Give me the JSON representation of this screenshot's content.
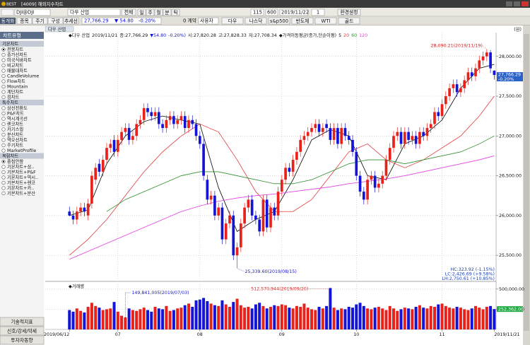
{
  "window": {
    "logo": "BEST",
    "title": "[4009] 해외지수차트"
  },
  "toolbar": {
    "symbol": "DJI@DJI",
    "name": "다우 산업",
    "range": "전체",
    "periods": [
      "일",
      "주",
      "월",
      "분",
      "틱"
    ],
    "count": "115",
    "max": "600",
    "date": "2019/11/22",
    "unit": "1",
    "settings": "환경설정",
    "tabs": [
      "동개화",
      "종목",
      "주기",
      "구성",
      "추세선"
    ],
    "price": "27,766.29",
    "change": "▼  54.80",
    "rate": "-0.20%",
    "contracts": "0 계약",
    "user": "사용자",
    "indices": [
      "다우",
      "나스닥",
      "s&p500",
      "반도체",
      "WTI",
      "골드"
    ]
  },
  "side_panel": {
    "title": "차트유형",
    "groups": [
      {
        "title": "기본차트",
        "selected": 0,
        "items": [
          "전봉차트",
          "종가선차트",
          "미국식바차트",
          "비교차트",
          "매물대차트",
          "CandleVolume",
          "Flow차트",
          "Mountain",
          "계단차트",
          "점차트"
        ]
      },
      {
        "title": "특수차트",
        "items": [
          "삼선전환도",
          "P&F차트",
          "역시계곡선",
          "렌코차트",
          "카기스윙",
          "분산차트",
          "역오선차트",
          "주기차트",
          "MarketProfile"
        ]
      },
      {
        "title": "복합차트",
        "selected": 0,
        "items": [
          "중첩안함",
          "기본차트+삼..",
          "기본차트+P&F",
          "기본차트+역시..",
          "기본차트+렌코",
          "기본차트+카..",
          "기본차트+분산"
        ]
      }
    ],
    "buttons": [
      "기술적지표",
      "신호/강세/약세",
      "투자자동향"
    ]
  },
  "chart_data": [
    {
      "type": "candlestick",
      "tab": "다우 산업",
      "unit_label": "(원)",
      "header": [
        {
          "text": "◆다우 산업",
          "color": "#111111"
        },
        {
          "text": "2019/11/21",
          "color": "#111111"
        },
        {
          "text": "종:27,766.29",
          "color": "#111111"
        },
        {
          "text": "▼54.80",
          "color": "#1414d6"
        },
        {
          "text": "-0.20%)",
          "color": "#1414d6"
        },
        {
          "text": "시:27,820.28",
          "color": "#111111"
        },
        {
          "text": "고:27,828.33",
          "color": "#111111"
        },
        {
          "text": "저:27,708.34",
          "color": "#111111"
        },
        {
          "text": "◆가격이동평균(종가,단순이평)",
          "color": "#111111"
        }
      ],
      "up_color": "#e8221b",
      "down_color": "#1414d6",
      "open": [
        26050,
        26000,
        25950,
        26050,
        26100,
        26000,
        26150,
        26450,
        26650,
        26550,
        26700,
        26850,
        26950,
        26800,
        26950,
        27050,
        27100,
        26950,
        27000,
        27150,
        27200,
        27350,
        27300,
        27250,
        27300,
        27150,
        27100,
        27200,
        27250,
        27150,
        27200,
        27250,
        27100,
        27200,
        27150,
        27000,
        26900,
        26450,
        26200,
        26250,
        26000,
        26100,
        25700,
        25900,
        26000,
        25500,
        25600,
        25900,
        26100,
        26200,
        26000,
        25950,
        25800,
        26200,
        25850,
        26100,
        26000,
        26300,
        26450,
        26600,
        26550,
        26700,
        26800,
        26950,
        27000,
        27050,
        27100,
        27150,
        27050,
        27150,
        27100,
        26950,
        27100,
        26900,
        27100,
        27000,
        26950,
        26800,
        26500,
        26300,
        26200,
        26450,
        26500,
        26350,
        26400,
        26500,
        26700,
        26850,
        27000,
        27050,
        26900,
        27050,
        26950,
        27000,
        26900,
        27050,
        27000,
        27100,
        27150,
        27300,
        27250,
        27400,
        27500,
        27600,
        27650,
        27550,
        27600,
        27700,
        27800,
        27750,
        27850,
        27950,
        28000,
        28050,
        27820.28
      ],
      "high": [
        26110,
        26060,
        26110,
        26160,
        26160,
        26210,
        26560,
        26660,
        26710,
        26760,
        26910,
        26960,
        27010,
        27010,
        27110,
        27160,
        27160,
        27060,
        27210,
        27260,
        27410,
        27410,
        27360,
        27360,
        27360,
        27210,
        27260,
        27310,
        27310,
        27260,
        27310,
        27310,
        27260,
        27260,
        27210,
        27060,
        26960,
        26510,
        26310,
        26310,
        26160,
        26160,
        25960,
        26060,
        26060,
        25660,
        25960,
        26160,
        26260,
        26260,
        26060,
        26010,
        26260,
        26260,
        26160,
        26160,
        26360,
        26510,
        26660,
        26660,
        26760,
        26860,
        27010,
        27060,
        27110,
        27160,
        27210,
        27210,
        27160,
        27210,
        27160,
        27160,
        27160,
        27160,
        27160,
        27060,
        27010,
        26860,
        26560,
        26360,
        26510,
        26560,
        26560,
        26460,
        26560,
        26760,
        26910,
        27060,
        27110,
        27110,
        27110,
        27110,
        27060,
        27060,
        27110,
        27110,
        27160,
        27210,
        27360,
        27360,
        27460,
        27560,
        27660,
        27710,
        27710,
        27660,
        27760,
        27860,
        27860,
        27910,
        28010,
        28060,
        28090.21,
        28080,
        27828.33
      ],
      "low": [
        25990,
        25890,
        25890,
        25990,
        25990,
        25940,
        26090,
        26390,
        26490,
        26490,
        26640,
        26790,
        26740,
        26740,
        26890,
        26990,
        26890,
        26890,
        26940,
        27090,
        27140,
        27240,
        27190,
        27190,
        27090,
        27040,
        27040,
        27140,
        27090,
        27090,
        27140,
        27040,
        27040,
        27090,
        26940,
        26840,
        26440,
        26140,
        26140,
        25940,
        25940,
        25640,
        25640,
        25840,
        25440,
        25339.6,
        25540,
        25840,
        26040,
        25940,
        25890,
        25740,
        25740,
        25790,
        25790,
        25940,
        25940,
        26240,
        26390,
        26490,
        26490,
        26640,
        26740,
        26890,
        26940,
        26990,
        27040,
        26990,
        26990,
        27040,
        26890,
        26890,
        26840,
        26840,
        26940,
        26890,
        26740,
        26440,
        26240,
        26140,
        26140,
        26390,
        26290,
        26290,
        26340,
        26440,
        26640,
        26790,
        26940,
        26840,
        26840,
        26890,
        26890,
        26840,
        26840,
        26940,
        26940,
        27040,
        27090,
        27190,
        27190,
        27340,
        27440,
        27540,
        27490,
        27490,
        27540,
        27640,
        27690,
        27690,
        27790,
        27890,
        27940,
        27790,
        27708.34
      ],
      "close": [
        26000,
        25950,
        26050,
        26100,
        26050,
        26150,
        26500,
        26600,
        26550,
        26700,
        26850,
        26900,
        26800,
        26950,
        27050,
        27100,
        26950,
        27000,
        27150,
        27200,
        27350,
        27300,
        27250,
        27300,
        27150,
        27100,
        27200,
        27250,
        27150,
        27200,
        27250,
        27100,
        27200,
        27150,
        27000,
        26900,
        26500,
        26200,
        26250,
        26000,
        26100,
        25700,
        25900,
        26000,
        25500,
        25600,
        25900,
        26100,
        26200,
        26000,
        25950,
        25800,
        26200,
        25850,
        26100,
        26000,
        26300,
        26450,
        26600,
        26550,
        26700,
        26800,
        26950,
        27000,
        27050,
        27100,
        27150,
        27050,
        27100,
        27100,
        26950,
        27100,
        26900,
        27100,
        27000,
        26950,
        26800,
        26500,
        26300,
        26200,
        26450,
        26500,
        26350,
        26400,
        26500,
        26700,
        26850,
        27000,
        27050,
        26900,
        27050,
        26950,
        27000,
        26900,
        27050,
        27000,
        27100,
        27150,
        27300,
        27250,
        27400,
        27500,
        27600,
        27650,
        27550,
        27600,
        27700,
        27800,
        27750,
        27850,
        27950,
        28000,
        28050,
        27850,
        27766.29
      ],
      "moving_averages": [
        {
          "name": "5",
          "color": "#000000",
          "x": [
            0,
            5,
            10,
            15,
            20,
            25,
            30,
            35,
            40,
            45,
            50,
            55,
            60,
            65,
            70,
            75,
            80,
            85,
            90,
            95,
            100,
            105,
            110,
            114
          ],
          "values": [
            26000,
            26070,
            26650,
            27000,
            27180,
            27250,
            27200,
            27150,
            26350,
            25800,
            25950,
            26050,
            26450,
            26950,
            27080,
            27000,
            26500,
            26450,
            26900,
            27000,
            27200,
            27600,
            27850,
            27900
          ]
        },
        {
          "name": "20",
          "color": "#e23a3a",
          "x": [
            0,
            5,
            10,
            15,
            20,
            25,
            30,
            35,
            40,
            45,
            50,
            55,
            60,
            65,
            70,
            75,
            80,
            85,
            90,
            95,
            100,
            105,
            110,
            114
          ],
          "values": [
            25500,
            25700,
            25950,
            26250,
            26550,
            26800,
            27000,
            27150,
            27050,
            26700,
            26300,
            26050,
            26050,
            26200,
            26500,
            26800,
            26900,
            26700,
            26600,
            26700,
            26850,
            27000,
            27250,
            27500
          ]
        },
        {
          "name": "60",
          "color": "#2f8f2f",
          "x": [
            0,
            5,
            10,
            15,
            20,
            25,
            30,
            35,
            40,
            45,
            50,
            55,
            60,
            65,
            70,
            75,
            80,
            85,
            90,
            95,
            100,
            105,
            110,
            114
          ],
          "values": [
            null,
            null,
            26050,
            26200,
            26300,
            26400,
            26500,
            26550,
            26550,
            26500,
            26450,
            26400,
            26400,
            26450,
            26550,
            26650,
            26700,
            26700,
            26650,
            26700,
            26750,
            26800,
            26900,
            27000
          ]
        },
        {
          "name": "120",
          "color": "#e040e0",
          "x": [
            0,
            5,
            10,
            15,
            20,
            25,
            30,
            35,
            40,
            45,
            50,
            55,
            60,
            65,
            70,
            75,
            80,
            85,
            90,
            95,
            100,
            105,
            110,
            114
          ],
          "values": [
            25450,
            25550,
            25650,
            25750,
            25850,
            25950,
            26050,
            26120,
            26180,
            26220,
            26250,
            26270,
            26300,
            26330,
            26360,
            26400,
            26430,
            26460,
            26500,
            26550,
            26600,
            26650,
            26700,
            26750
          ]
        }
      ],
      "xlim": [
        -6.5,
        114.5
      ],
      "xticks": [
        {
          "value": 0,
          "label": "2019/06/12"
        },
        {
          "value": 13,
          "label": "07"
        },
        {
          "value": 35,
          "label": "08"
        },
        {
          "value": 57,
          "label": "09"
        },
        {
          "value": 77,
          "label": "10"
        },
        {
          "value": 100,
          "label": "11"
        },
        {
          "value": 114,
          "label": "2019/11/21"
        }
      ],
      "ylim": [
        25190,
        28300
      ],
      "yticks": [
        {
          "value": 25500,
          "label": "25,500.00"
        },
        {
          "value": 26000,
          "label": "26,000.00"
        },
        {
          "value": 26500,
          "label": "26,500.00"
        },
        {
          "value": 27000,
          "label": "27,000.00"
        },
        {
          "value": 27500,
          "label": "27,500.00"
        },
        {
          "value": 28000,
          "label": "28,000.00"
        }
      ],
      "grid": true,
      "annotations": {
        "max": "28,090.21(2019/11/19)",
        "min": "25,339.60(2019/08/15)"
      },
      "last_label": [
        "27,766.29",
        "-0.20%"
      ],
      "stats": [
        "HC:323.92 (-1.15%)",
        "LC:2,426.69 (+9.58%)",
        "LH:2,750.61 (+10.85%)"
      ]
    },
    {
      "type": "bar",
      "title": "◆거래량",
      "values": [
        240000000.0,
        220000000.0,
        260000000.0,
        230000000.0,
        210000000.0,
        280000000.0,
        330000000.0,
        290000000.0,
        270000000.0,
        240000000.0,
        250000000.0,
        260000000.0,
        340000000.0,
        220000000.0,
        170000000.0,
        149841005,
        260000000.0,
        240000000.0,
        230000000.0,
        250000000.0,
        270000000.0,
        240000000.0,
        220000000.0,
        280000000.0,
        260000000.0,
        250000000.0,
        290000000.0,
        230000000.0,
        240000000.0,
        260000000.0,
        270000000.0,
        300000000.0,
        320000000.0,
        280000000.0,
        360000000.0,
        370000000.0,
        390000000.0,
        350000000.0,
        320000000.0,
        300000000.0,
        290000000.0,
        360000000.0,
        310000000.0,
        280000000.0,
        340000000.0,
        380000000.0,
        300000000.0,
        270000000.0,
        280000000.0,
        260000000.0,
        310000000.0,
        330000000.0,
        290000000.0,
        260000000.0,
        280000000.0,
        300000000.0,
        290000000.0,
        310000000.0,
        300000000.0,
        270000000.0,
        260000000.0,
        290000000.0,
        280000000.0,
        320000000.0,
        270000000.0,
        250000000.0,
        240000000.0,
        280000000.0,
        260000000.0,
        290000000.0,
        512570944,
        270000000.0,
        240000000.0,
        260000000.0,
        250000000.0,
        280000000.0,
        270000000.0,
        310000000.0,
        330000000.0,
        290000000.0,
        260000000.0,
        250000000.0,
        270000000.0,
        280000000.0,
        260000000.0,
        240000000.0,
        290000000.0,
        260000000.0,
        230000000.0,
        250000000.0,
        270000000.0,
        260000000.0,
        250000000.0,
        280000000.0,
        300000000.0,
        270000000.0,
        260000000.0,
        290000000.0,
        280000000.0,
        310000000.0,
        320000000.0,
        290000000.0,
        270000000.0,
        260000000.0,
        280000000.0,
        270000000.0,
        250000000.0,
        240000000.0,
        260000000.0,
        290000000.0,
        270000000.0,
        250000000.0,
        280000000.0,
        290000000.0,
        252362000.0
      ],
      "xlim": [
        -6.5,
        114.5
      ],
      "ylim": [
        0,
        560000000.0
      ],
      "yticks": [
        {
          "value": 250000000.0,
          "label": "250,000.00"
        },
        {
          "value": 500000000.0,
          "label": "500,000.00"
        }
      ],
      "grid": true,
      "annotations": {
        "max": "512,570,944(2019/09/20)",
        "min": "149,841,005(2019/07/03)"
      },
      "last_label": "252,362.00",
      "last_color": "#22aa44"
    }
  ]
}
